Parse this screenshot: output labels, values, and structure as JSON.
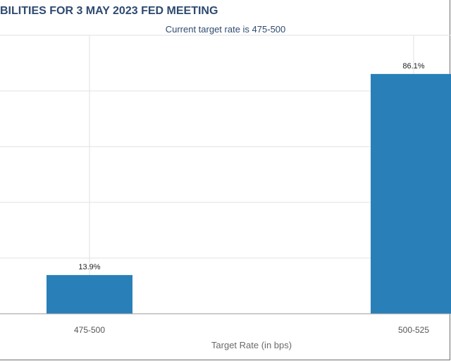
{
  "title": "BILITIES FOR 3 MAY 2023 FED MEETING",
  "subtitle": "Current target rate is 475-500",
  "colors": {
    "bar": "#2980b9",
    "title": "#2e4a70",
    "grid": "#e2e2e2"
  },
  "chart_data": {
    "type": "bar",
    "categories": [
      "475-500",
      "500-525"
    ],
    "values": [
      13.9,
      86.1
    ],
    "value_labels": [
      "13.9%",
      "86.1%"
    ],
    "xlabel": "Target Rate (in bps)",
    "ylim": [
      0,
      100
    ],
    "grid": true,
    "legend": "none"
  }
}
